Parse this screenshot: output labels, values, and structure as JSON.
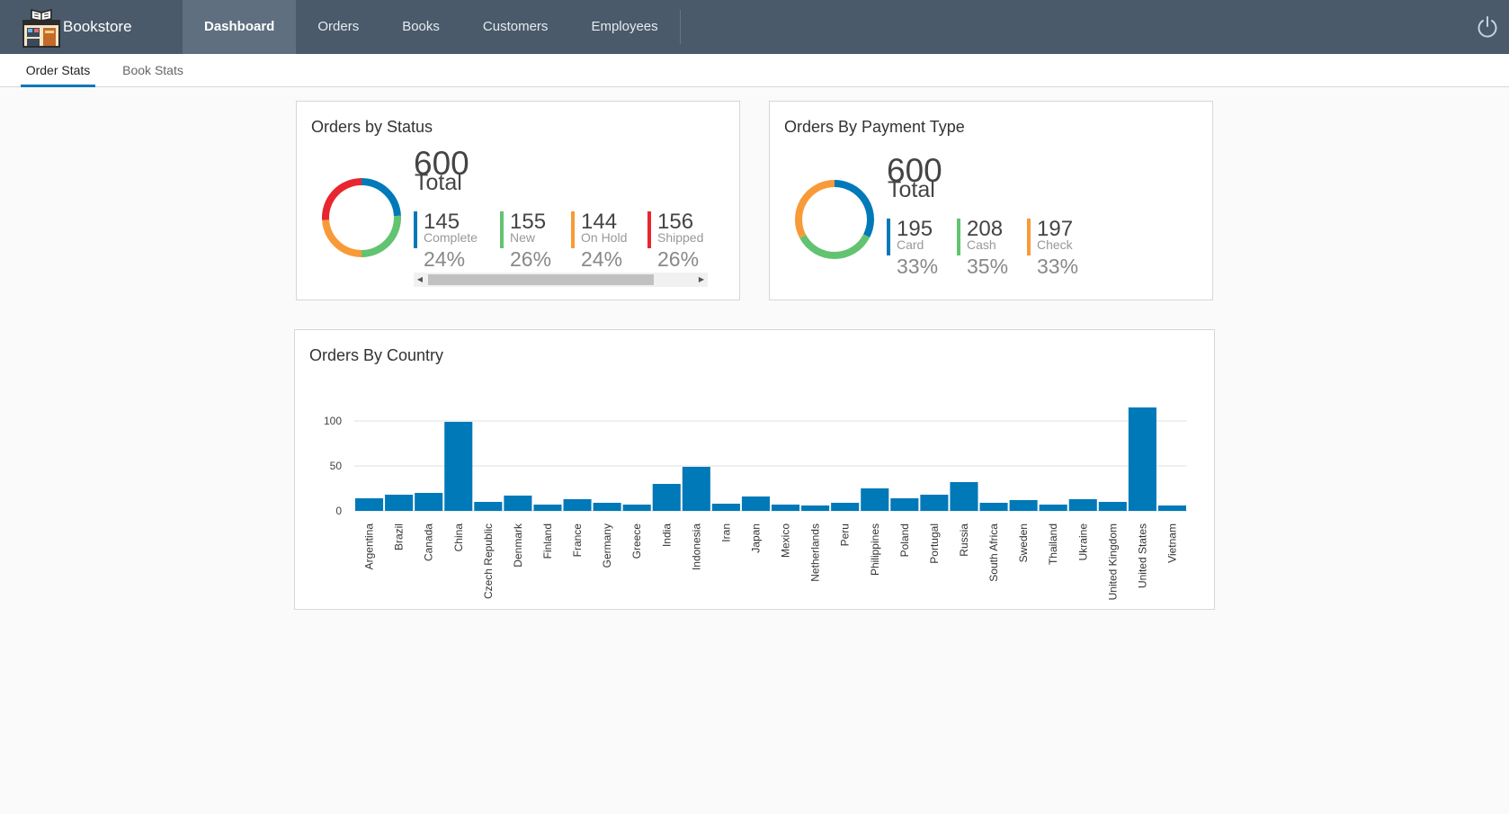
{
  "app": {
    "title": "Bookstore"
  },
  "nav": {
    "items": [
      {
        "label": "Dashboard",
        "active": true
      },
      {
        "label": "Orders",
        "active": false
      },
      {
        "label": "Books",
        "active": false
      },
      {
        "label": "Customers",
        "active": false
      },
      {
        "label": "Employees",
        "active": false
      }
    ]
  },
  "subnav": {
    "tabs": [
      {
        "label": "Order Stats",
        "active": true
      },
      {
        "label": "Book Stats",
        "active": false
      }
    ]
  },
  "status_card": {
    "title": "Orders by Status",
    "total_value": "600",
    "total_label": "Total",
    "stats": [
      {
        "value": "145",
        "label": "Complete",
        "percent": "24%",
        "color": "#0079b8"
      },
      {
        "value": "155",
        "label": "New",
        "percent": "26%",
        "color": "#62c370"
      },
      {
        "value": "144",
        "label": "On Hold",
        "percent": "24%",
        "color": "#f89a38"
      },
      {
        "value": "156",
        "label": "Shipped",
        "percent": "26%",
        "color": "#e8262f"
      }
    ],
    "scroll_fraction_visible": 0.85
  },
  "payment_card": {
    "title": "Orders By Payment Type",
    "total_value": "600",
    "total_label": "Total",
    "stats": [
      {
        "value": "195",
        "label": "Card",
        "percent": "33%",
        "color": "#0079b8"
      },
      {
        "value": "208",
        "label": "Cash",
        "percent": "35%",
        "color": "#62c370"
      },
      {
        "value": "197",
        "label": "Check",
        "percent": "33%",
        "color": "#f89a38"
      }
    ]
  },
  "country_card": {
    "title": "Orders By Country"
  },
  "chart_data": [
    {
      "type": "pie",
      "variant": "donut",
      "labels": [
        "Complete",
        "New",
        "On Hold",
        "Shipped"
      ],
      "values": [
        145,
        155,
        144,
        156
      ],
      "colors": [
        "#0079b8",
        "#62c370",
        "#f89a38",
        "#e8262f"
      ]
    },
    {
      "type": "pie",
      "variant": "donut",
      "labels": [
        "Card",
        "Cash",
        "Check"
      ],
      "values": [
        195,
        208,
        197
      ],
      "colors": [
        "#0079b8",
        "#62c370",
        "#f89a38"
      ]
    },
    {
      "type": "bar",
      "categories": [
        "Argentina",
        "Brazil",
        "Canada",
        "China",
        "Czech Republic",
        "Denmark",
        "Finland",
        "France",
        "Germany",
        "Greece",
        "India",
        "Indonesia",
        "Iran",
        "Japan",
        "Mexico",
        "Netherlands",
        "Peru",
        "Philippines",
        "Poland",
        "Portugal",
        "Russia",
        "South Africa",
        "Sweden",
        "Thailand",
        "Ukraine",
        "United Kingdom",
        "United States",
        "Vietnam"
      ],
      "values": [
        14,
        18,
        20,
        99,
        10,
        17,
        7,
        13,
        9,
        7,
        30,
        49,
        8,
        16,
        7,
        6,
        9,
        25,
        14,
        18,
        32,
        9,
        12,
        7,
        13,
        10,
        115,
        6
      ],
      "yticks": [
        "100",
        "50",
        "0"
      ],
      "ylim": [
        0,
        125
      ],
      "grid": true,
      "color": "#0079b8"
    }
  ]
}
